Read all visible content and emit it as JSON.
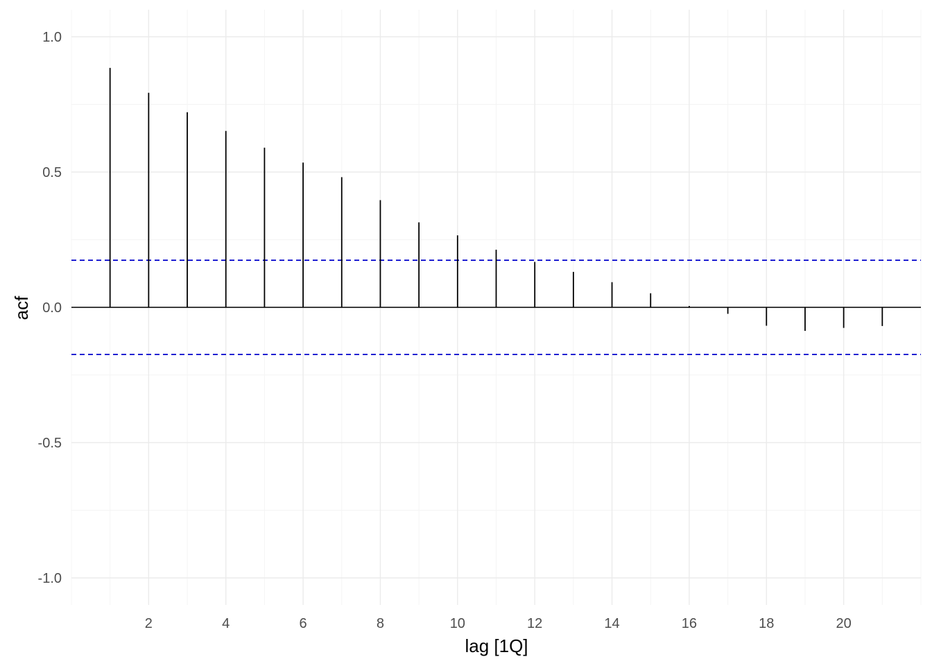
{
  "chart_data": {
    "type": "bar",
    "subtype": "acf-lollipop",
    "xlabel": "lag [1Q]",
    "ylabel": "acf",
    "xlim": [
      0,
      22
    ],
    "ylim": [
      -1.1,
      1.1
    ],
    "x_ticks": [
      2,
      4,
      6,
      8,
      10,
      12,
      14,
      16,
      18,
      20
    ],
    "y_ticks": [
      -1.0,
      -0.5,
      0.0,
      0.5,
      1.0
    ],
    "y_tick_labels": [
      "-1.0",
      "-0.5",
      "0.0",
      "0.5",
      "1.0"
    ],
    "lags": [
      1,
      2,
      3,
      4,
      5,
      6,
      7,
      8,
      9,
      10,
      11,
      12,
      13,
      14,
      15,
      16,
      17,
      18,
      19,
      20,
      21
    ],
    "values": [
      0.885,
      0.793,
      0.721,
      0.652,
      0.59,
      0.535,
      0.481,
      0.396,
      0.314,
      0.266,
      0.213,
      0.168,
      0.131,
      0.093,
      0.052,
      0.005,
      -0.024,
      -0.068,
      -0.087,
      -0.076,
      -0.069
    ],
    "confidence_bounds": [
      0.174,
      -0.174
    ],
    "grid": true,
    "colors": {
      "bars": "#000000",
      "zero_line": "#000000",
      "confidence": "#0000cc",
      "grid_major": "#ebebeb",
      "grid_minor": "#f4f4f4",
      "tick_text": "#4d4d4d"
    }
  }
}
